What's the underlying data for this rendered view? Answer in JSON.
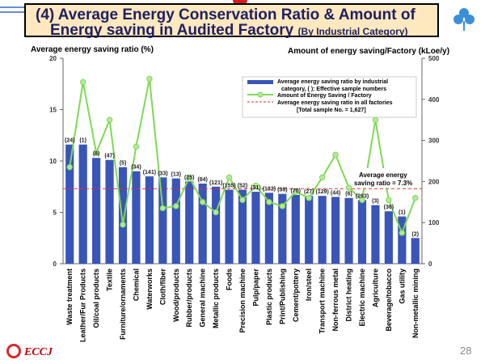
{
  "title": {
    "line1": "(4) Average Energy Conservation Ratio & Amount of",
    "line2": "Energy saving in Audited Factory",
    "subtitle": "(By Industrial Category)"
  },
  "chart_data": {
    "type": "bar",
    "ylabel_left": "Average energy saving ratio (%)",
    "ylabel_right": "Amount of energy saving/Factory (kLoe/y)",
    "ylim_left": [
      0,
      20
    ],
    "ylim_right": [
      0,
      500
    ],
    "left_ticks": [
      "0",
      "5",
      "10",
      "15",
      "20"
    ],
    "right_ticks": [
      "0",
      "100",
      "200",
      "300",
      "400",
      "500"
    ],
    "categories": [
      "Waste treatment",
      "Leather/Fur Products",
      "Oil/coal products",
      "Textile",
      "Furniture/ornaments",
      "Chemical",
      "Waterworks",
      "Cloth/fiber",
      "Wood/products",
      "Rubber/products",
      "General machine",
      "Metallic products",
      "Foods",
      "Precision machine",
      "Pulp/paper",
      "Plastic products",
      "Print/Publishing",
      "Cement/pottery",
      "Iron/steel",
      "Transport machine",
      "Non-ferrous metal",
      "District heating",
      "Electric machine",
      "Agriculture",
      "Beverage/tobacco",
      "Gas utility",
      "Non-metallic mining"
    ],
    "sample_numbers": [
      "(24)",
      "(1)",
      "(8)",
      "(47)",
      "(5)",
      "(34)",
      "(141)",
      "(33)",
      "(13)",
      "(25)",
      "(84)",
      "(121)",
      "(155)",
      "(52)",
      "(31)",
      "(132)",
      "(38)",
      "(70)",
      "(27)",
      "(129)",
      "(44)",
      "(6)",
      "(263)",
      "(3)",
      "(36)",
      "(1)",
      "(2)"
    ],
    "series": [
      {
        "name": "Average energy saving ratio by industrial category, ( ): Effective sample numbers",
        "type": "bar",
        "axis": "left",
        "color": "#3a55b8",
        "values": [
          11.6,
          11.6,
          10.3,
          10.1,
          9.4,
          9.0,
          8.5,
          8.4,
          8.3,
          8.0,
          7.8,
          7.5,
          7.2,
          7.2,
          7.0,
          6.9,
          6.8,
          6.7,
          6.6,
          6.6,
          6.5,
          6.4,
          6.2,
          5.7,
          5.1,
          4.6,
          2.5
        ]
      },
      {
        "name": "Amount of Energy Saving / Factory",
        "type": "line",
        "axis": "right",
        "color": "#7ed957",
        "values": [
          235,
          442,
          270,
          350,
          95,
          285,
          450,
          135,
          140,
          210,
          150,
          125,
          210,
          155,
          190,
          150,
          140,
          175,
          160,
          210,
          265,
          185,
          155,
          350,
          155,
          75,
          160
        ]
      }
    ],
    "reference": {
      "name": "Average energy saving ratio in all factories",
      "value": 7.3,
      "color": "#e03030"
    },
    "legend": [
      "Average energy saving ratio by industrial",
      "category, ( ): Effective sample numbers",
      "Amount of Energy Saving / Factory",
      "Average energy saving ratio in all factories",
      "[Total sample No. = 1,627]"
    ],
    "annotation": [
      "Average energy",
      "saving ratio = 7.3%"
    ],
    "grid": false
  },
  "footer": {
    "logo_text": "ECCJ",
    "page_number": "28"
  },
  "colors": {
    "title_bg": "#fde8bf",
    "title_text": "#1f1f60"
  }
}
